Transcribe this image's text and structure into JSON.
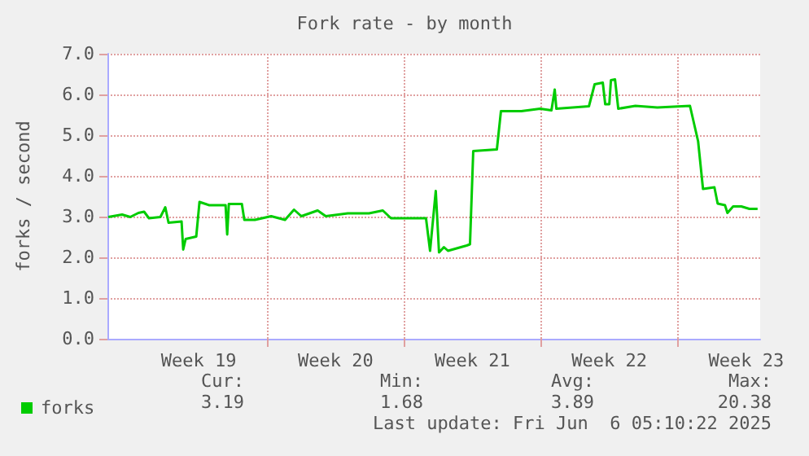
{
  "chart_data": {
    "type": "line",
    "title": "Fork rate - by month",
    "ylabel": "forks / second",
    "xlim": [
      "2025-05-03T20:00",
      "2025-06-06T05:10"
    ],
    "xticks": [
      {
        "value": "2025-05-08T12:00",
        "label": "Week 19"
      },
      {
        "value": "2025-05-12",
        "label": null
      },
      {
        "value": "2025-05-15T12:00",
        "label": "Week 20"
      },
      {
        "value": "2025-05-19",
        "label": null
      },
      {
        "value": "2025-05-22T12:00",
        "label": "Week 21"
      },
      {
        "value": "2025-05-26",
        "label": null
      },
      {
        "value": "2025-05-29T12:00",
        "label": "Week 22"
      },
      {
        "value": "2025-06-02",
        "label": null
      },
      {
        "value": "2025-06-05T12:00",
        "label": "Week 23"
      }
    ],
    "ylim": [
      0,
      7
    ],
    "yticks": [
      {
        "value": 0,
        "label": "0.0"
      },
      {
        "value": 1,
        "label": "1.0"
      },
      {
        "value": 2,
        "label": "2.0"
      },
      {
        "value": 3,
        "label": "3.0"
      },
      {
        "value": 4,
        "label": "4.0"
      },
      {
        "value": 5,
        "label": "5.0"
      },
      {
        "value": 6,
        "label": "6.0"
      },
      {
        "value": 7,
        "label": "7.0"
      }
    ],
    "grid": true,
    "legend": "bottom left",
    "marker": "none",
    "line_style": "solid",
    "series": [
      {
        "name": "forks",
        "color": "#00cc00",
        "x": [
          "2025-05-03T21:00",
          "2025-05-04T14:00",
          "2025-05-05T00:00",
          "2025-05-05T10:00",
          "2025-05-05T17:00",
          "2025-05-05T23:00",
          "2025-05-06T13:00",
          "2025-05-06T19:00",
          "2025-05-06T23:00",
          "2025-05-07T15:00",
          "2025-05-07T17:00",
          "2025-05-07T20:00",
          "2025-05-08T09:00",
          "2025-05-08T13:00",
          "2025-05-09T01:00",
          "2025-05-09T21:00",
          "2025-05-09T23:00",
          "2025-05-10T01:00",
          "2025-05-10T17:00",
          "2025-05-10T20:00",
          "2025-05-11T09:00",
          "2025-05-12T05:00",
          "2025-05-12T22:00",
          "2025-05-13T09:00",
          "2025-05-13T18:00",
          "2025-05-14T14:00",
          "2025-05-15T00:00",
          "2025-05-16T03:00",
          "2025-05-17T05:00",
          "2025-05-17T22:00",
          "2025-05-18T08:00",
          "2025-05-20T03:00",
          "2025-05-20T08:00",
          "2025-05-20T15:00",
          "2025-05-20T19:00",
          "2025-05-21T01:00",
          "2025-05-21T06:00",
          "2025-05-22T05:00",
          "2025-05-22T09:00",
          "2025-05-22T13:00",
          "2025-05-23T18:00",
          "2025-05-23T23:00",
          "2025-05-25T00:00",
          "2025-05-25T23:00",
          "2025-05-26T13:00",
          "2025-05-26T17:00",
          "2025-05-26T19:00",
          "2025-05-28T11:00",
          "2025-05-28T18:00",
          "2025-05-29T04:00",
          "2025-05-29T07:00",
          "2025-05-29T12:00",
          "2025-05-29T14:00",
          "2025-05-29T19:00",
          "2025-05-29T23:00",
          "2025-05-30T20:00",
          "2025-05-31T23:00",
          "2025-06-02T15:00",
          "2025-06-03T01:00",
          "2025-06-03T07:00",
          "2025-06-03T21:00",
          "2025-06-04T01:00",
          "2025-06-04T10:00",
          "2025-06-04T13:00",
          "2025-06-04T20:00",
          "2025-06-05T06:00",
          "2025-06-05T16:00",
          "2025-06-06T02:00"
        ],
        "values": [
          2.99,
          3.05,
          2.99,
          3.09,
          3.12,
          2.96,
          2.99,
          3.23,
          2.85,
          2.88,
          2.19,
          2.45,
          2.51,
          3.36,
          3.28,
          3.28,
          2.56,
          3.31,
          3.31,
          2.92,
          2.92,
          3.01,
          2.92,
          3.17,
          3.01,
          3.15,
          3.01,
          3.08,
          3.08,
          3.15,
          2.96,
          2.96,
          2.16,
          3.63,
          2.12,
          2.25,
          2.16,
          2.29,
          2.32,
          4.61,
          4.65,
          5.59,
          5.59,
          5.65,
          5.61,
          6.12,
          5.65,
          5.71,
          6.25,
          6.29,
          5.76,
          5.76,
          6.35,
          6.37,
          5.65,
          5.72,
          5.68,
          5.72,
          4.85,
          3.68,
          3.72,
          3.32,
          3.28,
          3.09,
          3.25,
          3.25,
          3.19,
          3.19
        ]
      }
    ],
    "annotations": [
      "Cur:",
      "Min:",
      "Avg:",
      "Max:",
      "3.19",
      "1.68",
      "3.89",
      "20.38",
      "Last update: Fri Jun  6 05:10:22 2025"
    ]
  }
}
